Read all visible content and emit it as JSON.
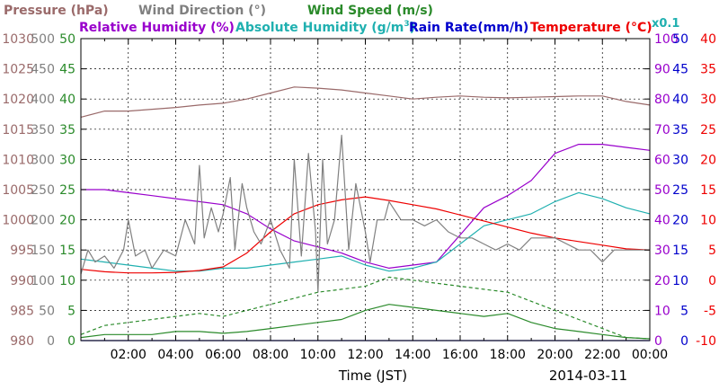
{
  "chart_data": {
    "type": "line",
    "date": "2014-03-11",
    "xlabel": "Time (JST)",
    "x_ticks": [
      "02:00",
      "04:00",
      "06:00",
      "08:00",
      "10:00",
      "12:00",
      "14:00",
      "16:00",
      "18:00",
      "20:00",
      "22:00",
      "00:00"
    ],
    "x_range_hours": [
      0,
      24
    ],
    "grid": true,
    "legend": {
      "pressure": "Pressure (hPa)",
      "wind_direction": "Wind Direction (°)",
      "wind_speed": "Wind Speed (m/s)",
      "relative_humidity": "Relative Humidity (%)",
      "absolute_humidity_prefix": "Absolute Humidity (g/m",
      "absolute_humidity_sup": "3",
      "absolute_humidity_suffix": ")",
      "rain_rate": "Rain Rate(mm/h)",
      "temperature": "Temperature (°C)",
      "scale_note": "x0.1"
    },
    "axes": {
      "pressure": {
        "range": [
          980,
          1030
        ],
        "ticks": [
          "980",
          "985",
          "990",
          "995",
          "1000",
          "1005",
          "1010",
          "1015",
          "1020",
          "1025",
          "1030"
        ],
        "color": "#9a6a6a"
      },
      "wind_direction": {
        "range": [
          0,
          500
        ],
        "ticks": [
          "0",
          "50",
          "100",
          "150",
          "200",
          "250",
          "300",
          "350",
          "400",
          "450",
          "500"
        ],
        "color": "#808080"
      },
      "wind_speed": {
        "range": [
          0,
          50
        ],
        "ticks": [
          "0",
          "5",
          "10",
          "15",
          "20",
          "25",
          "30",
          "35",
          "40",
          "45",
          "50"
        ],
        "color": "#2a8a2a"
      },
      "relative_humidity": {
        "range": [
          0,
          100
        ],
        "ticks": [
          "0",
          "10",
          "20",
          "30",
          "40",
          "50",
          "60",
          "70",
          "80",
          "90",
          "100"
        ],
        "color": "#9900cc"
      },
      "rain_rate": {
        "range": [
          0,
          50
        ],
        "ticks": [
          "0",
          "5",
          "10",
          "15",
          "20",
          "25",
          "30",
          "35",
          "40",
          "45",
          "50"
        ],
        "color": "#0000cc"
      },
      "temperature": {
        "range": [
          -10,
          40
        ],
        "ticks": [
          "-10",
          "-5",
          "0",
          "5",
          "10",
          "15",
          "20",
          "25",
          "30",
          "35",
          "40"
        ],
        "color": "#ee0000"
      }
    },
    "series": [
      {
        "name": "Pressure (hPa)",
        "key": "pressure",
        "color": "#9a6a6a",
        "points": [
          [
            0,
            1017
          ],
          [
            1,
            1018
          ],
          [
            2,
            1018
          ],
          [
            3,
            1018.3
          ],
          [
            4,
            1018.6
          ],
          [
            5,
            1019
          ],
          [
            6,
            1019.3
          ],
          [
            7,
            1020
          ],
          [
            8,
            1021
          ],
          [
            9,
            1022
          ],
          [
            10,
            1021.8
          ],
          [
            11,
            1021.5
          ],
          [
            12,
            1021
          ],
          [
            13,
            1020.5
          ],
          [
            14,
            1020
          ],
          [
            15,
            1020.3
          ],
          [
            16,
            1020.5
          ],
          [
            17,
            1020.3
          ],
          [
            18,
            1020.2
          ],
          [
            19,
            1020.3
          ],
          [
            20,
            1020.4
          ],
          [
            21,
            1020.5
          ],
          [
            22,
            1020.5
          ],
          [
            23,
            1019.6
          ],
          [
            24,
            1019
          ]
        ]
      },
      {
        "name": "Relative Humidity (%)",
        "key": "relative_humidity",
        "color": "#9900cc",
        "points": [
          [
            0,
            50
          ],
          [
            1,
            50
          ],
          [
            2,
            49
          ],
          [
            3,
            48
          ],
          [
            4,
            47
          ],
          [
            5,
            46
          ],
          [
            6,
            45
          ],
          [
            7,
            42
          ],
          [
            8,
            37
          ],
          [
            9,
            33
          ],
          [
            10,
            31
          ],
          [
            11,
            29
          ],
          [
            12,
            26
          ],
          [
            13,
            24
          ],
          [
            14,
            25
          ],
          [
            15,
            26
          ],
          [
            16,
            35
          ],
          [
            17,
            44
          ],
          [
            18,
            48
          ],
          [
            19,
            53
          ],
          [
            20,
            62
          ],
          [
            21,
            65
          ],
          [
            22,
            65
          ],
          [
            23,
            64
          ],
          [
            24,
            63
          ]
        ]
      },
      {
        "name": "Absolute Humidity (g/m3)",
        "key": "relative_humidity",
        "color": "#20b0b0",
        "points": [
          [
            0,
            27
          ],
          [
            1,
            26
          ],
          [
            2,
            25
          ],
          [
            3,
            24
          ],
          [
            4,
            23
          ],
          [
            5,
            23
          ],
          [
            6,
            24
          ],
          [
            7,
            24
          ],
          [
            8,
            25
          ],
          [
            9,
            26
          ],
          [
            10,
            27
          ],
          [
            11,
            28
          ],
          [
            12,
            25
          ],
          [
            13,
            23
          ],
          [
            14,
            24
          ],
          [
            15,
            26
          ],
          [
            16,
            32
          ],
          [
            17,
            38
          ],
          [
            18,
            40
          ],
          [
            19,
            42
          ],
          [
            20,
            46
          ],
          [
            21,
            49
          ],
          [
            22,
            47
          ],
          [
            23,
            44
          ],
          [
            24,
            42
          ]
        ]
      },
      {
        "name": "Temperature (°C)",
        "key": "temperature",
        "color": "#ee0000",
        "points": [
          [
            0,
            1.8
          ],
          [
            1,
            1.4
          ],
          [
            2,
            1.2
          ],
          [
            3,
            1.2
          ],
          [
            4,
            1.3
          ],
          [
            5,
            1.6
          ],
          [
            6,
            2.2
          ],
          [
            7,
            4.5
          ],
          [
            8,
            8.0
          ],
          [
            9,
            11.0
          ],
          [
            10,
            12.5
          ],
          [
            11,
            13.3
          ],
          [
            12,
            13.8
          ],
          [
            13,
            13.2
          ],
          [
            14,
            12.5
          ],
          [
            15,
            11.8
          ],
          [
            16,
            10.8
          ],
          [
            17,
            9.8
          ],
          [
            18,
            8.8
          ],
          [
            19,
            7.8
          ],
          [
            20,
            7.0
          ],
          [
            21,
            6.4
          ],
          [
            22,
            5.8
          ],
          [
            23,
            5.2
          ],
          [
            24,
            5.0
          ]
        ]
      },
      {
        "name": "Wind Direction (°)",
        "key": "wind_direction",
        "color": "#808080",
        "points": [
          [
            0,
            110
          ],
          [
            0.3,
            150
          ],
          [
            0.6,
            130
          ],
          [
            1,
            140
          ],
          [
            1.4,
            120
          ],
          [
            1.8,
            150
          ],
          [
            2,
            200
          ],
          [
            2.3,
            140
          ],
          [
            2.7,
            150
          ],
          [
            3,
            120
          ],
          [
            3.5,
            150
          ],
          [
            4,
            140
          ],
          [
            4.4,
            200
          ],
          [
            4.8,
            160
          ],
          [
            5,
            290
          ],
          [
            5.2,
            170
          ],
          [
            5.5,
            220
          ],
          [
            5.8,
            180
          ],
          [
            6,
            210
          ],
          [
            6.3,
            270
          ],
          [
            6.5,
            150
          ],
          [
            6.8,
            260
          ],
          [
            7,
            220
          ],
          [
            7.3,
            180
          ],
          [
            7.6,
            160
          ],
          [
            8,
            200
          ],
          [
            8.4,
            150
          ],
          [
            8.8,
            120
          ],
          [
            9,
            300
          ],
          [
            9.3,
            140
          ],
          [
            9.6,
            310
          ],
          [
            9.9,
            180
          ],
          [
            10,
            80
          ],
          [
            10.2,
            300
          ],
          [
            10.4,
            160
          ],
          [
            10.7,
            200
          ],
          [
            11,
            340
          ],
          [
            11.3,
            150
          ],
          [
            11.6,
            260
          ],
          [
            11.9,
            200
          ],
          [
            12,
            180
          ],
          [
            12.2,
            130
          ],
          [
            12.5,
            200
          ],
          [
            12.8,
            200
          ],
          [
            13,
            230
          ],
          [
            13.5,
            200
          ],
          [
            14,
            200
          ],
          [
            14.5,
            190
          ],
          [
            15,
            200
          ],
          [
            15.5,
            180
          ],
          [
            16,
            170
          ],
          [
            16.5,
            170
          ],
          [
            17,
            160
          ],
          [
            17.5,
            150
          ],
          [
            18,
            160
          ],
          [
            18.5,
            150
          ],
          [
            19,
            170
          ],
          [
            19.5,
            170
          ],
          [
            20,
            170
          ],
          [
            20.5,
            160
          ],
          [
            21,
            150
          ],
          [
            21.5,
            150
          ],
          [
            22,
            130
          ],
          [
            22.5,
            150
          ],
          [
            23,
            150
          ],
          [
            24,
            150
          ]
        ]
      },
      {
        "name": "Wind Speed (m/s)",
        "key": "wind_speed",
        "color": "#2a8a2a",
        "points": [
          [
            0,
            0.5
          ],
          [
            1,
            1
          ],
          [
            2,
            1
          ],
          [
            3,
            1
          ],
          [
            4,
            1.5
          ],
          [
            5,
            1.5
          ],
          [
            6,
            1.2
          ],
          [
            7,
            1.5
          ],
          [
            8,
            2
          ],
          [
            9,
            2.5
          ],
          [
            10,
            3
          ],
          [
            11,
            3.5
          ],
          [
            12,
            5
          ],
          [
            13,
            6
          ],
          [
            14,
            5.5
          ],
          [
            15,
            5
          ],
          [
            16,
            4.5
          ],
          [
            17,
            4
          ],
          [
            18,
            4.5
          ],
          [
            19,
            3
          ],
          [
            20,
            2
          ],
          [
            21,
            1.5
          ],
          [
            22,
            1
          ],
          [
            23,
            0.5
          ],
          [
            24,
            0.3
          ]
        ]
      },
      {
        "name": "Wind Speed gust",
        "key": "wind_speed",
        "color": "#2a8a2a",
        "dashed": true,
        "points": [
          [
            0,
            1
          ],
          [
            1,
            2.5
          ],
          [
            2,
            3
          ],
          [
            3,
            3.5
          ],
          [
            4,
            4
          ],
          [
            5,
            4.5
          ],
          [
            6,
            4
          ],
          [
            7,
            5
          ],
          [
            8,
            6
          ],
          [
            9,
            7
          ],
          [
            10,
            8
          ],
          [
            11,
            8.5
          ],
          [
            12,
            9
          ],
          [
            13,
            10.5
          ],
          [
            14,
            10
          ],
          [
            15,
            9.5
          ],
          [
            16,
            9
          ],
          [
            17,
            8.5
          ],
          [
            18,
            8
          ],
          [
            19,
            6.5
          ],
          [
            20,
            5
          ],
          [
            21,
            3.5
          ],
          [
            22,
            2
          ],
          [
            23,
            0.5
          ],
          [
            24,
            0.3
          ]
        ]
      },
      {
        "name": "Rain Rate(mm/h)",
        "key": "rain_rate",
        "color": "#0000cc",
        "points": [
          [
            0,
            0
          ],
          [
            24,
            0
          ]
        ]
      }
    ]
  }
}
